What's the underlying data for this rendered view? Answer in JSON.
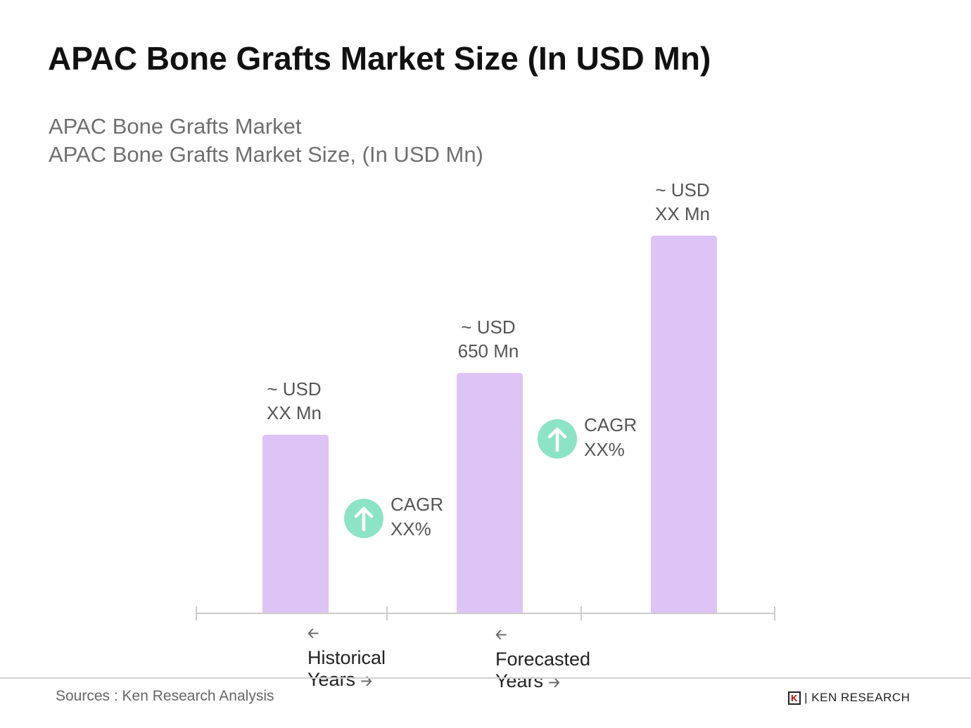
{
  "title": "APAC Bone Grafts Market Size (In USD Mn)",
  "subtitle_1": "APAC Bone Grafts Market",
  "subtitle_2": "APAC Bone Grafts Market Size, (In USD Mn)",
  "chart_data": {
    "type": "bar",
    "categories": [
      "",
      "",
      ""
    ],
    "values": [
      483,
      650,
      1021
    ],
    "data_labels": [
      [
        "~ USD",
        "XX Mn"
      ],
      [
        "~ USD",
        "650 Mn"
      ],
      [
        "~ USD",
        "XX Mn"
      ]
    ],
    "bar_color": "#dec3f7",
    "annotations": [
      {
        "label": [
          "CAGR",
          "XX%"
        ],
        "icon": "arrow-up-circle-icon",
        "color": "#8de3c6"
      },
      {
        "label": [
          "CAGR",
          "XX%"
        ],
        "icon": "arrow-up-circle-icon",
        "color": "#8de3c6"
      }
    ],
    "axis_sections": [
      "Historical Years",
      "Forecasted Years"
    ],
    "ylim": [
      0,
      1100
    ],
    "grid": false
  },
  "footer": {
    "source": "Sources : Ken Research Analysis",
    "logo": "KEN RESEARCH"
  }
}
